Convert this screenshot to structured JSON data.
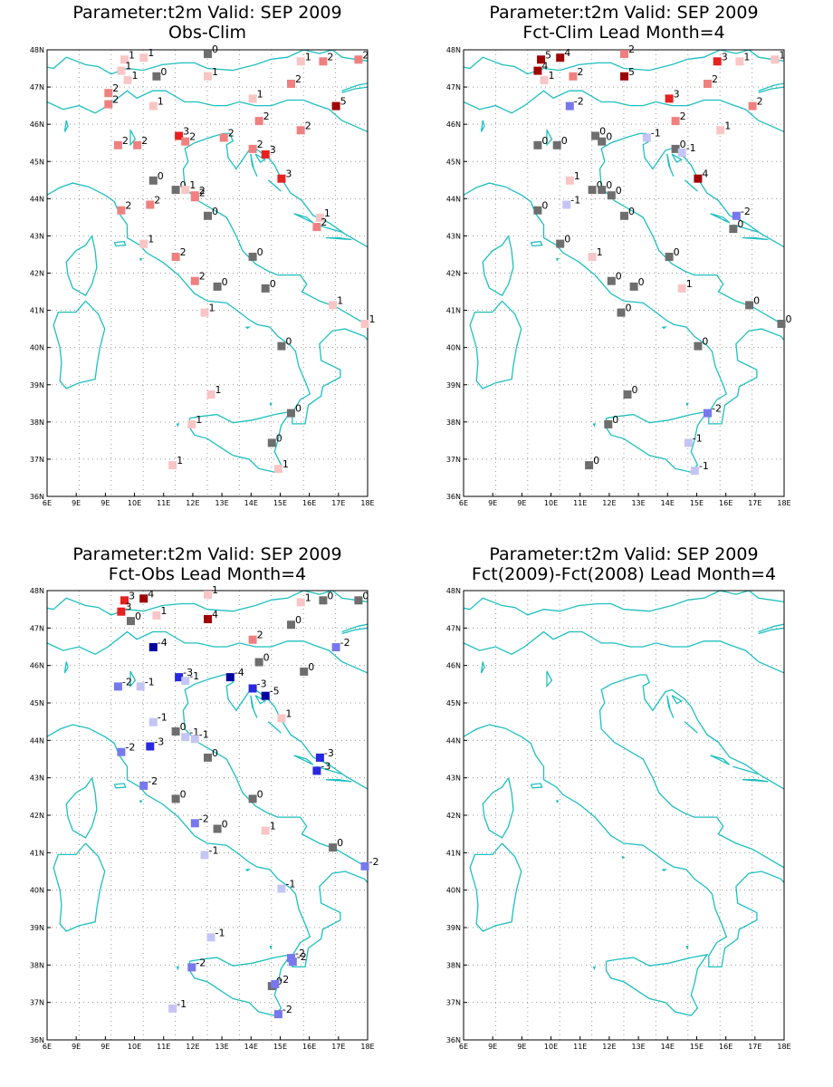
{
  "panels": [
    {
      "title_line1": "Parameter:t2m Valid: SEP 2009",
      "title_line2": "Obs-Clim",
      "stations": [
        [
          10.4,
          47.75,
          1
        ],
        [
          11.0,
          47.8,
          1
        ],
        [
          13.0,
          47.9,
          0
        ],
        [
          15.9,
          47.7,
          1
        ],
        [
          16.6,
          47.7,
          2
        ],
        [
          17.7,
          47.75,
          2
        ],
        [
          10.3,
          47.45,
          1
        ],
        [
          11.4,
          47.3,
          0
        ],
        [
          10.5,
          47.2,
          1
        ],
        [
          13.0,
          47.3,
          1
        ],
        [
          15.6,
          47.1,
          2
        ],
        [
          9.9,
          46.85,
          2
        ],
        [
          9.9,
          46.55,
          2
        ],
        [
          11.3,
          46.5,
          1
        ],
        [
          14.4,
          46.7,
          1
        ],
        [
          17.0,
          46.5,
          5
        ],
        [
          12.1,
          45.7,
          3
        ],
        [
          12.3,
          45.55,
          2
        ],
        [
          13.5,
          45.65,
          2
        ],
        [
          14.6,
          46.1,
          2
        ],
        [
          15.9,
          45.85,
          2
        ],
        [
          10.2,
          45.45,
          2
        ],
        [
          10.8,
          45.45,
          2
        ],
        [
          14.4,
          45.35,
          2
        ],
        [
          14.8,
          45.2,
          3
        ],
        [
          15.3,
          44.55,
          3
        ],
        [
          11.3,
          44.5,
          0
        ],
        [
          12.0,
          44.25,
          0
        ],
        [
          12.3,
          44.25,
          1
        ],
        [
          12.6,
          44.05,
          2
        ],
        [
          12.6,
          44.1,
          2
        ],
        [
          11.2,
          43.85,
          2
        ],
        [
          10.3,
          43.7,
          2
        ],
        [
          13.0,
          43.55,
          0
        ],
        [
          16.5,
          43.5,
          1
        ],
        [
          16.4,
          43.25,
          2
        ],
        [
          11.0,
          42.8,
          1
        ],
        [
          12.0,
          42.45,
          2
        ],
        [
          14.4,
          42.45,
          0
        ],
        [
          12.6,
          41.8,
          2
        ],
        [
          13.3,
          41.65,
          0
        ],
        [
          14.8,
          41.6,
          0
        ],
        [
          12.9,
          40.95,
          1
        ],
        [
          16.9,
          41.15,
          1
        ],
        [
          17.9,
          40.65,
          1
        ],
        [
          15.3,
          40.05,
          0
        ],
        [
          13.1,
          38.75,
          1
        ],
        [
          15.6,
          38.25,
          0
        ],
        [
          12.5,
          37.95,
          1
        ],
        [
          15.0,
          37.45,
          0
        ],
        [
          11.9,
          36.85,
          1
        ],
        [
          15.2,
          36.75,
          1
        ]
      ]
    },
    {
      "title_line1": "Parameter:t2m Valid: SEP 2009",
      "title_line2": "Fct-Clim Lead Month=4",
      "stations": [
        [
          10.4,
          47.75,
          5
        ],
        [
          11.0,
          47.8,
          4
        ],
        [
          13.0,
          47.9,
          2
        ],
        [
          15.9,
          47.7,
          3
        ],
        [
          16.6,
          47.7,
          1
        ],
        [
          17.7,
          47.75,
          1
        ],
        [
          10.3,
          47.45,
          4
        ],
        [
          11.4,
          47.3,
          2
        ],
        [
          10.5,
          47.2,
          1
        ],
        [
          13.0,
          47.3,
          5
        ],
        [
          15.6,
          47.1,
          2
        ],
        [
          11.3,
          46.5,
          -2
        ],
        [
          14.4,
          46.7,
          3
        ],
        [
          17.0,
          46.5,
          2
        ],
        [
          14.6,
          46.1,
          2
        ],
        [
          16.0,
          45.85,
          1
        ],
        [
          10.3,
          45.45,
          0
        ],
        [
          10.9,
          45.45,
          0
        ],
        [
          12.1,
          45.7,
          0
        ],
        [
          12.3,
          45.55,
          0
        ],
        [
          13.7,
          45.65,
          -1
        ],
        [
          14.6,
          45.35,
          0
        ],
        [
          14.8,
          45.25,
          -1
        ],
        [
          15.3,
          44.55,
          4
        ],
        [
          11.3,
          44.5,
          1
        ],
        [
          12.0,
          44.25,
          0
        ],
        [
          12.3,
          44.25,
          0
        ],
        [
          12.6,
          44.1,
          0
        ],
        [
          11.2,
          43.85,
          -1
        ],
        [
          10.3,
          43.7,
          0
        ],
        [
          13.0,
          43.55,
          0
        ],
        [
          16.5,
          43.55,
          -2
        ],
        [
          16.4,
          43.2,
          0
        ],
        [
          11.0,
          42.8,
          0
        ],
        [
          12.0,
          42.45,
          1
        ],
        [
          14.4,
          42.45,
          0
        ],
        [
          12.6,
          41.8,
          0
        ],
        [
          13.3,
          41.65,
          0
        ],
        [
          14.8,
          41.6,
          1
        ],
        [
          12.9,
          40.95,
          0
        ],
        [
          16.9,
          41.15,
          0
        ],
        [
          17.9,
          40.65,
          0
        ],
        [
          15.3,
          40.05,
          0
        ],
        [
          13.1,
          38.75,
          0
        ],
        [
          15.6,
          38.25,
          -2
        ],
        [
          12.5,
          37.95,
          0
        ],
        [
          15.0,
          37.45,
          -1
        ],
        [
          11.9,
          36.85,
          0
        ],
        [
          15.2,
          36.7,
          -1
        ]
      ]
    },
    {
      "title_line1": "Parameter:t2m Valid: SEP 2009",
      "title_line2": "Fct-Obs Lead Month=4",
      "stations": [
        [
          10.4,
          47.75,
          3
        ],
        [
          11.0,
          47.8,
          4
        ],
        [
          13.0,
          47.9,
          1
        ],
        [
          15.9,
          47.7,
          1
        ],
        [
          16.6,
          47.75,
          0
        ],
        [
          17.7,
          47.75,
          0
        ],
        [
          10.3,
          47.45,
          3
        ],
        [
          10.6,
          47.2,
          0
        ],
        [
          11.4,
          47.35,
          1
        ],
        [
          13.0,
          47.25,
          4
        ],
        [
          15.6,
          47.1,
          0
        ],
        [
          11.3,
          46.5,
          -4
        ],
        [
          14.4,
          46.7,
          2
        ],
        [
          17.0,
          46.5,
          -2
        ],
        [
          14.6,
          46.1,
          0
        ],
        [
          16.0,
          45.85,
          0
        ],
        [
          10.2,
          45.45,
          -2
        ],
        [
          10.9,
          45.45,
          -1
        ],
        [
          12.1,
          45.7,
          -3
        ],
        [
          12.3,
          45.6,
          -1
        ],
        [
          13.7,
          45.7,
          -4
        ],
        [
          14.4,
          45.4,
          -3
        ],
        [
          14.8,
          45.2,
          -5
        ],
        [
          15.3,
          44.6,
          1
        ],
        [
          11.3,
          44.5,
          -1
        ],
        [
          12.0,
          44.25,
          0
        ],
        [
          12.3,
          44.1,
          -1
        ],
        [
          12.6,
          44.05,
          -1
        ],
        [
          11.2,
          43.85,
          -3
        ],
        [
          10.3,
          43.7,
          -2
        ],
        [
          13.0,
          43.55,
          0
        ],
        [
          16.5,
          43.55,
          -3
        ],
        [
          16.4,
          43.2,
          -3
        ],
        [
          11.0,
          42.8,
          -2
        ],
        [
          12.0,
          42.45,
          0
        ],
        [
          14.4,
          42.45,
          0
        ],
        [
          12.6,
          41.8,
          -2
        ],
        [
          13.3,
          41.65,
          0
        ],
        [
          14.8,
          41.6,
          1
        ],
        [
          12.9,
          40.95,
          -1
        ],
        [
          16.9,
          41.15,
          0
        ],
        [
          17.9,
          40.65,
          -2
        ],
        [
          15.3,
          40.05,
          -1
        ],
        [
          13.1,
          38.75,
          -1
        ],
        [
          15.6,
          38.2,
          -2
        ],
        [
          15.65,
          38.1,
          -2
        ],
        [
          12.5,
          37.95,
          -2
        ],
        [
          15.0,
          37.45,
          0
        ],
        [
          15.1,
          37.5,
          -2
        ],
        [
          11.9,
          36.85,
          -1
        ],
        [
          15.2,
          36.7,
          -2
        ]
      ]
    },
    {
      "title_line1": "Parameter:t2m Valid: SEP 2009",
      "title_line2": "Fct(2009)-Fct(2008) Lead Month=4",
      "stations": []
    }
  ],
  "axes": {
    "lon_labels": [
      "6E",
      "9E",
      "9E",
      "10E",
      "11E",
      "12E",
      "13E",
      "14E",
      "15E",
      "16E",
      "17E",
      "18E"
    ],
    "lat_labels": [
      "48N",
      "47N",
      "46N",
      "45N",
      "44N",
      "43N",
      "42N",
      "41N",
      "40N",
      "39N",
      "38N",
      "37N",
      "36N"
    ],
    "lon_range": [
      8,
      18
    ],
    "lat_range": [
      36,
      48
    ],
    "grid": "dotted"
  },
  "colors": {
    "coast": "#1fbfbf",
    "grid": "#9a9a9a",
    "frame": "#000000",
    "zero": "#6e6e6e",
    "pos": {
      "1": "#fac5c5",
      "2": "#f08080",
      "3": "#e82020",
      "4": "#a00000",
      "5": "#a00000"
    },
    "neg": {
      "1": "#c5c5f5",
      "2": "#7878ee",
      "3": "#2828e0",
      "4": "#0000a0",
      "5": "#0000a0"
    }
  }
}
